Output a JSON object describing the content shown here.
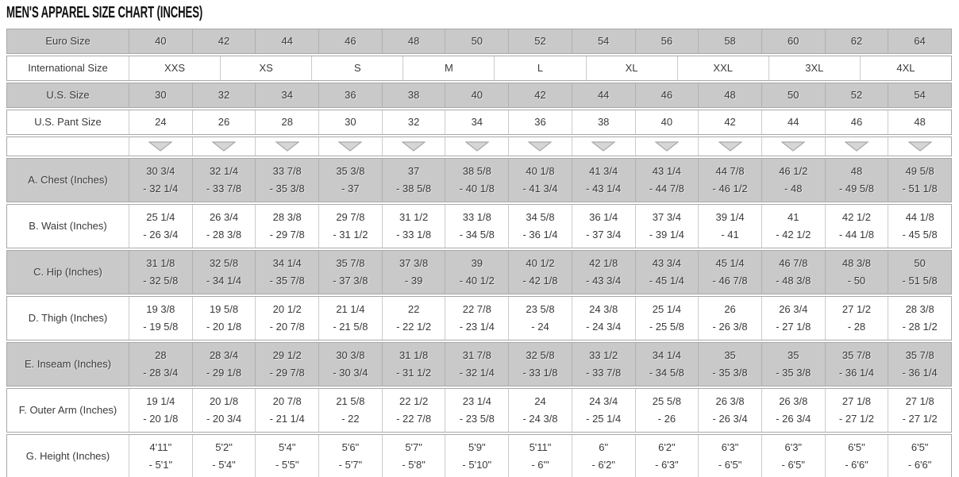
{
  "chart_data": {
    "type": "table",
    "title": "MEN'S APPAREL SIZE CHART (INCHES)",
    "rows": [
      {
        "label": "Euro Size",
        "shade": "gray",
        "kind": "size",
        "cells": [
          "40",
          "42",
          "44",
          "46",
          "48",
          "50",
          "52",
          "54",
          "56",
          "58",
          "60",
          "62",
          "64"
        ]
      },
      {
        "label": "International Size",
        "shade": "white",
        "kind": "size",
        "wide": true,
        "cells": [
          "XXS",
          "XS",
          "S",
          "M",
          "L",
          "XL",
          "XXL",
          "3XL",
          "4XL"
        ]
      },
      {
        "label": "U.S. Size",
        "shade": "gray",
        "kind": "size",
        "cells": [
          "30",
          "32",
          "34",
          "36",
          "38",
          "40",
          "42",
          "44",
          "46",
          "48",
          "50",
          "52",
          "54"
        ]
      },
      {
        "label": "U.S. Pant Size",
        "shade": "white",
        "kind": "size",
        "cells": [
          "24",
          "26",
          "28",
          "30",
          "32",
          "34",
          "36",
          "38",
          "40",
          "42",
          "44",
          "46",
          "48"
        ]
      },
      {
        "label": "",
        "shade": "white",
        "kind": "arrows",
        "arrow_count": 13,
        "icon": "down-triangle-icon"
      },
      {
        "label": "A. Chest (Inches)",
        "shade": "gray",
        "kind": "range",
        "cells": [
          [
            "30 3/4",
            "- 32 1/4"
          ],
          [
            "32 1/4",
            "- 33 7/8"
          ],
          [
            "33 7/8",
            "- 35 3/8"
          ],
          [
            "35 3/8",
            "- 37"
          ],
          [
            "37",
            "- 38 5/8"
          ],
          [
            "38 5/8",
            "- 40 1/8"
          ],
          [
            "40 1/8",
            "- 41 3/4"
          ],
          [
            "41 3/4",
            "- 43 1/4"
          ],
          [
            "43 1/4",
            "- 44 7/8"
          ],
          [
            "44 7/8",
            "- 46 1/2"
          ],
          [
            "46 1/2",
            "- 48"
          ],
          [
            "48",
            "- 49 5/8"
          ],
          [
            "49 5/8",
            "- 51 1/8"
          ]
        ]
      },
      {
        "label": "B. Waist (Inches)",
        "shade": "white",
        "kind": "range",
        "cells": [
          [
            "25 1/4",
            "- 26 3/4"
          ],
          [
            "26 3/4",
            "- 28 3/8"
          ],
          [
            "28 3/8",
            "- 29 7/8"
          ],
          [
            "29 7/8",
            "- 31 1/2"
          ],
          [
            "31 1/2",
            "- 33 1/8"
          ],
          [
            "33 1/8",
            "- 34 5/8"
          ],
          [
            "34 5/8",
            "- 36 1/4"
          ],
          [
            "36 1/4",
            "- 37 3/4"
          ],
          [
            "37 3/4",
            "- 39 1/4"
          ],
          [
            "39 1/4",
            "- 41"
          ],
          [
            "41",
            "- 42 1/2"
          ],
          [
            "42 1/2",
            "- 44 1/8"
          ],
          [
            "44 1/8",
            "- 45 5/8"
          ]
        ]
      },
      {
        "label": "C. Hip (Inches)",
        "shade": "gray",
        "kind": "range",
        "cells": [
          [
            "31 1/8",
            "- 32 5/8"
          ],
          [
            "32 5/8",
            "- 34 1/4"
          ],
          [
            "34 1/4",
            "- 35 7/8"
          ],
          [
            "35 7/8",
            "- 37 3/8"
          ],
          [
            "37 3/8",
            "- 39"
          ],
          [
            "39",
            "- 40 1/2"
          ],
          [
            "40 1/2",
            "- 42 1/8"
          ],
          [
            "42 1/8",
            "- 43 3/4"
          ],
          [
            "43 3/4",
            "- 45 1/4"
          ],
          [
            "45 1/4",
            "- 46 7/8"
          ],
          [
            "46 7/8",
            "- 48 3/8"
          ],
          [
            "48 3/8",
            "- 50"
          ],
          [
            "50",
            "- 51 5/8"
          ]
        ]
      },
      {
        "label": "D. Thigh (Inches)",
        "shade": "white",
        "kind": "range",
        "cells": [
          [
            "19 3/8",
            "- 19 5/8"
          ],
          [
            "19 5/8",
            "- 20 1/8"
          ],
          [
            "20 1/2",
            "- 20 7/8"
          ],
          [
            "21 1/4",
            "- 21 5/8"
          ],
          [
            "22",
            "- 22 1/2"
          ],
          [
            "22 7/8",
            "- 23 1/4"
          ],
          [
            "23 5/8",
            "- 24"
          ],
          [
            "24 3/8",
            "- 24 3/4"
          ],
          [
            "25 1/4",
            "- 25 5/8"
          ],
          [
            "26",
            "- 26 3/8"
          ],
          [
            "26 3/4",
            "- 27 1/8"
          ],
          [
            "27 1/2",
            "- 28"
          ],
          [
            "28 3/8",
            "- 28 1/2"
          ]
        ]
      },
      {
        "label": "E. Inseam (Inches)",
        "shade": "gray",
        "kind": "range",
        "cells": [
          [
            "28",
            "- 28 3/4"
          ],
          [
            "28 3/4",
            "- 29 1/8"
          ],
          [
            "29 1/2",
            "- 29 7/8"
          ],
          [
            "30 3/8",
            "- 30 3/4"
          ],
          [
            "31 1/8",
            "- 31 1/2"
          ],
          [
            "31 7/8",
            "- 32 1/4"
          ],
          [
            "32 5/8",
            "- 33 1/8"
          ],
          [
            "33 1/2",
            "- 33 7/8"
          ],
          [
            "34 1/4",
            "- 34 5/8"
          ],
          [
            "35",
            "- 35 3/8"
          ],
          [
            "35",
            "- 35 3/8"
          ],
          [
            "35 7/8",
            "- 36 1/4"
          ],
          [
            "35 7/8",
            "- 36 1/4"
          ]
        ]
      },
      {
        "label": "F. Outer Arm (Inches)",
        "shade": "white",
        "kind": "range",
        "cells": [
          [
            "19 1/4",
            "- 20 1/8"
          ],
          [
            "20 1/8",
            "- 20 3/4"
          ],
          [
            "20 7/8",
            "- 21 1/4"
          ],
          [
            "21 5/8",
            "- 22"
          ],
          [
            "22 1/2",
            "- 22 7/8"
          ],
          [
            "23 1/4",
            "- 23 5/8"
          ],
          [
            "24",
            "- 24 3/8"
          ],
          [
            "24 3/4",
            "- 25 1/4"
          ],
          [
            "25 5/8",
            "- 26"
          ],
          [
            "26 3/8",
            "- 26 3/4"
          ],
          [
            "26 3/8",
            "- 26 3/4"
          ],
          [
            "27 1/8",
            "- 27 1/2"
          ],
          [
            "27 1/8",
            "- 27 1/2"
          ]
        ]
      },
      {
        "label": "G. Height (Inches)",
        "shade": "white",
        "kind": "range",
        "cells": [
          [
            "4'11\"",
            "- 5'1\""
          ],
          [
            "5'2\"",
            "- 5'4\""
          ],
          [
            "5'4\"",
            "- 5'5\""
          ],
          [
            "5'6\"",
            "- 5'7\""
          ],
          [
            "5'7\"",
            "- 5'8\""
          ],
          [
            "5'9\"",
            "- 5'10\""
          ],
          [
            "5'11\"",
            "- 6'\""
          ],
          [
            "6\"",
            "- 6'2\""
          ],
          [
            "6'2\"",
            "- 6'3\""
          ],
          [
            "6'3\"",
            "- 6'5\""
          ],
          [
            "6'3\"",
            "- 6'5\""
          ],
          [
            "6'5\"",
            "- 6'6\""
          ],
          [
            "6'5\"",
            "- 6'6\""
          ]
        ]
      }
    ]
  },
  "colors": {
    "row_gray": "#c9c9c9",
    "row_border": "#a8a8a8",
    "separator_white_row": "#cbcbcb",
    "separator_gray_row": "#b0b0b0",
    "triangle_fill": "#d6d6d6",
    "triangle_stroke": "#a9a9a9",
    "text": "#3a3a3a",
    "title": "#111111"
  }
}
